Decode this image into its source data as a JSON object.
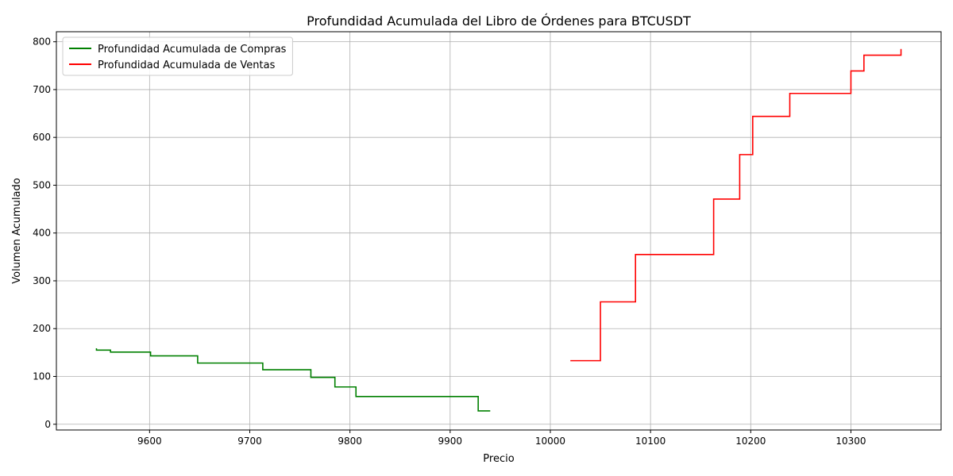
{
  "chart_data": {
    "type": "step",
    "step": "post",
    "title": "Profundidad Acumulada del Libro de Órdenes para BTCUSDT",
    "xlabel": "Precio",
    "ylabel": "Volumen Acumulado",
    "xlim": [
      9507,
      10390
    ],
    "xticks": [
      9600,
      9700,
      9800,
      9900,
      10000,
      10100,
      10200,
      10300
    ],
    "ylim": [
      -12,
      821
    ],
    "yticks": [
      0,
      100,
      200,
      300,
      400,
      500,
      600,
      700,
      800
    ],
    "grid": true,
    "legend": "upper left",
    "series": [
      {
        "name": "Profundidad Acumulada de Compras",
        "color": "green",
        "x": [
          9940,
          9928,
          9806,
          9785,
          9761,
          9713,
          9648,
          9601,
          9561,
          9547
        ],
        "values": [
          28,
          58,
          78,
          98,
          114,
          128,
          143,
          151,
          155,
          159
        ]
      },
      {
        "name": "Profundidad Acumulada de Ventas",
        "color": "red",
        "x": [
          10020,
          10050,
          10085,
          10163,
          10189,
          10202,
          10239,
          10300,
          10313,
          10350
        ],
        "values": [
          133,
          256,
          355,
          471,
          564,
          644,
          692,
          739,
          772,
          785
        ]
      }
    ]
  }
}
